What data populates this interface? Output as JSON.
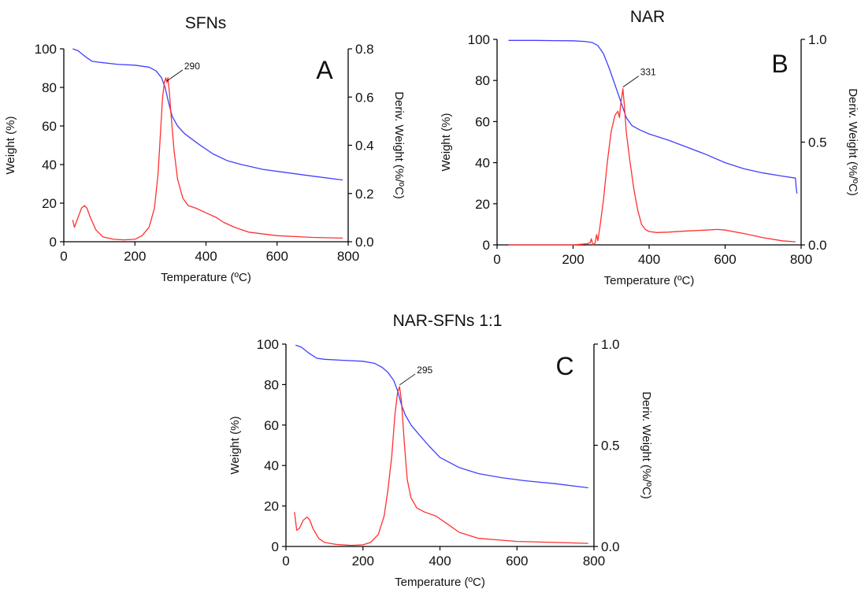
{
  "chart_data": [
    {
      "type": "line",
      "title": "SFNs",
      "panel_label": "A",
      "xlabel": "Temperature (ºC)",
      "ylabel_left": "Weight (%)",
      "ylabel_right": "Deriv. Weight (%/ºC)",
      "xlim": [
        0,
        800
      ],
      "ylim_left": [
        0,
        100
      ],
      "ylim_right": [
        0,
        0.8
      ],
      "xticks": [
        "0",
        "200",
        "400",
        "600",
        "800"
      ],
      "yticks_left": [
        "0",
        "20",
        "40",
        "60",
        "80",
        "100"
      ],
      "yticks_right": [
        "0.0",
        "0.2",
        "0.4",
        "0.6",
        "0.8"
      ],
      "grid": false,
      "annotation": {
        "label": "290",
        "x": 290
      },
      "series": [
        {
          "axis": "left",
          "color": "#4040ff",
          "x": [
            25,
            40,
            60,
            80,
            100,
            150,
            200,
            240,
            260,
            275,
            285,
            295,
            305,
            320,
            340,
            380,
            420,
            460,
            500,
            560,
            620,
            700,
            785
          ],
          "y": [
            100,
            99,
            96,
            93.5,
            93,
            92,
            91.5,
            90.5,
            88.5,
            85,
            80,
            72,
            65,
            60,
            56,
            50.5,
            45.5,
            42,
            40,
            37.5,
            36,
            34,
            32
          ]
        },
        {
          "axis": "right",
          "color": "#ff3030",
          "x": [
            25,
            30,
            40,
            50,
            58,
            65,
            75,
            90,
            110,
            140,
            170,
            200,
            220,
            240,
            255,
            265,
            272,
            278,
            283,
            287,
            290,
            293,
            297,
            302,
            310,
            320,
            335,
            350,
            370,
            400,
            430,
            450,
            480,
            520,
            600,
            700,
            785
          ],
          "y": [
            0.09,
            0.06,
            0.1,
            0.14,
            0.15,
            0.14,
            0.1,
            0.05,
            0.02,
            0.01,
            0.008,
            0.01,
            0.025,
            0.06,
            0.14,
            0.28,
            0.45,
            0.6,
            0.66,
            0.68,
            0.66,
            0.68,
            0.62,
            0.52,
            0.38,
            0.26,
            0.18,
            0.15,
            0.14,
            0.12,
            0.1,
            0.08,
            0.06,
            0.04,
            0.025,
            0.018,
            0.015
          ]
        }
      ]
    },
    {
      "type": "line",
      "title": "NAR",
      "panel_label": "B",
      "xlabel": "Temperature (ºC)",
      "ylabel_left": "Weight (%)",
      "ylabel_right": "Deriv. Weight (%/ºC)",
      "xlim": [
        0,
        800
      ],
      "ylim_left": [
        0,
        100
      ],
      "ylim_right": [
        0,
        1.0
      ],
      "xticks": [
        "0",
        "200",
        "400",
        "600",
        "800"
      ],
      "yticks_left": [
        "0",
        "20",
        "40",
        "60",
        "80",
        "100"
      ],
      "yticks_right": [
        "0.0",
        "0.5",
        "1.0"
      ],
      "grid": false,
      "annotation": {
        "label": "331",
        "x": 331
      },
      "series": [
        {
          "axis": "left",
          "color": "#4040ff",
          "x": [
            30,
            100,
            150,
            200,
            230,
            250,
            265,
            280,
            295,
            310,
            325,
            340,
            355,
            375,
            400,
            450,
            500,
            550,
            600,
            650,
            700,
            750,
            785,
            787,
            789
          ],
          "y": [
            99.5,
            99.5,
            99.4,
            99.3,
            99,
            98.5,
            97,
            93,
            86,
            78,
            70,
            62,
            58,
            56,
            54,
            51,
            47.5,
            44,
            40,
            37,
            35,
            33.5,
            32.5,
            28,
            25
          ]
        },
        {
          "axis": "right",
          "color": "#ff3030",
          "x": [
            30,
            100,
            200,
            235,
            245,
            248,
            252,
            258,
            262,
            265,
            270,
            280,
            290,
            300,
            310,
            318,
            322,
            325,
            328,
            331,
            335,
            340,
            350,
            360,
            370,
            380,
            390,
            400,
            420,
            450,
            500,
            550,
            580,
            600,
            650,
            700,
            750,
            785
          ],
          "y": [
            0.0,
            0.0,
            0.0,
            0.005,
            0.01,
            0.03,
            0.0,
            0.01,
            0.05,
            0.02,
            0.08,
            0.22,
            0.4,
            0.55,
            0.63,
            0.65,
            0.62,
            0.68,
            0.72,
            0.76,
            0.68,
            0.55,
            0.4,
            0.27,
            0.17,
            0.1,
            0.075,
            0.065,
            0.06,
            0.062,
            0.068,
            0.072,
            0.075,
            0.072,
            0.055,
            0.035,
            0.02,
            0.015
          ]
        }
      ]
    },
    {
      "type": "line",
      "title": "NAR-SFNs 1:1",
      "panel_label": "C",
      "xlabel": "Temperature (ºC)",
      "ylabel_left": "Weight (%)",
      "ylabel_right": "Deriv. Weight (%/ºC)",
      "xlim": [
        0,
        800
      ],
      "ylim_left": [
        0,
        100
      ],
      "ylim_right": [
        0,
        1.0
      ],
      "xticks": [
        "0",
        "200",
        "400",
        "600",
        "800"
      ],
      "yticks_left": [
        "0",
        "20",
        "40",
        "60",
        "80",
        "100"
      ],
      "yticks_right": [
        "0.0",
        "0.5",
        "1.0"
      ],
      "grid": false,
      "annotation": {
        "label": "295",
        "x": 295
      },
      "series": [
        {
          "axis": "left",
          "color": "#4040ff",
          "x": [
            25,
            40,
            60,
            80,
            100,
            150,
            200,
            230,
            250,
            265,
            280,
            290,
            300,
            310,
            325,
            345,
            370,
            400,
            450,
            500,
            560,
            620,
            700,
            785
          ],
          "y": [
            99.5,
            98.5,
            95.5,
            93,
            92.5,
            92,
            91.5,
            90.5,
            88.5,
            86,
            82,
            77,
            70,
            65,
            60,
            55.5,
            50,
            44,
            39,
            36,
            34,
            32.5,
            31,
            29
          ]
        },
        {
          "axis": "right",
          "color": "#ff3030",
          "x": [
            22,
            28,
            35,
            45,
            55,
            62,
            70,
            85,
            100,
            130,
            170,
            200,
            220,
            240,
            255,
            265,
            275,
            283,
            290,
            295,
            300,
            308,
            315,
            325,
            340,
            360,
            390,
            420,
            450,
            500,
            600,
            700,
            785
          ],
          "y": [
            0.17,
            0.08,
            0.09,
            0.13,
            0.145,
            0.13,
            0.09,
            0.04,
            0.02,
            0.01,
            0.005,
            0.008,
            0.02,
            0.06,
            0.15,
            0.28,
            0.45,
            0.65,
            0.76,
            0.79,
            0.72,
            0.5,
            0.33,
            0.24,
            0.19,
            0.17,
            0.15,
            0.11,
            0.07,
            0.04,
            0.025,
            0.02,
            0.015
          ]
        }
      ]
    }
  ]
}
